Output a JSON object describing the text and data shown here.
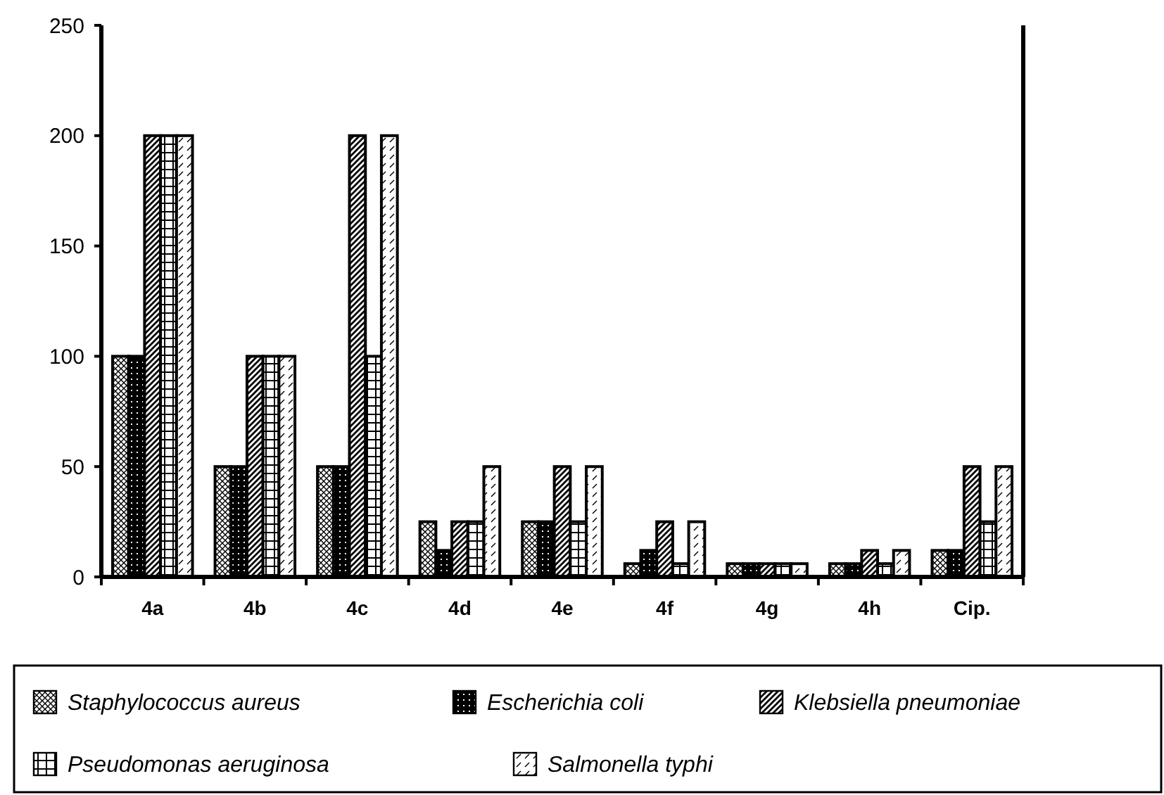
{
  "chart_data": {
    "type": "bar",
    "categories": [
      "4a",
      "4b",
      "4c",
      "4d",
      "4e",
      "4f",
      "4g",
      "4h",
      "Cip."
    ],
    "series": [
      {
        "name": "Staphylococcus aureus",
        "color": "#000000",
        "values": [
          100,
          50,
          50,
          25,
          25,
          6,
          6,
          6,
          12
        ]
      },
      {
        "name": "Escherichia coli",
        "color": "#000000",
        "values": [
          100,
          50,
          50,
          12,
          25,
          12,
          6,
          6,
          12
        ]
      },
      {
        "name": "Klebsiella pneumoniae",
        "color": "#000000",
        "values": [
          200,
          100,
          200,
          25,
          50,
          25,
          6,
          12,
          50
        ]
      },
      {
        "name": "Pseudomonas aeruginosa",
        "color": "#000000",
        "values": [
          200,
          100,
          100,
          25,
          25,
          6,
          6,
          6,
          25
        ]
      },
      {
        "name": "Salmonella typhi",
        "color": "#000000",
        "values": [
          200,
          100,
          200,
          50,
          50,
          25,
          6,
          12,
          50
        ]
      }
    ],
    "ylim": [
      0,
      250
    ],
    "yticks": [
      0,
      50,
      100,
      150,
      200,
      250
    ],
    "grid": false,
    "legend": "bottom"
  }
}
